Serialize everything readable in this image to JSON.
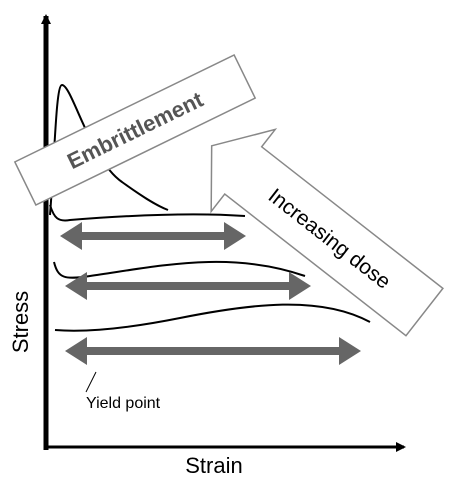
{
  "labels": {
    "embrittlement": "Embrittlement",
    "dose": "Increasing dose",
    "y_axis": "Stress",
    "x_axis": "Strain",
    "yield": "Yield point"
  }
}
